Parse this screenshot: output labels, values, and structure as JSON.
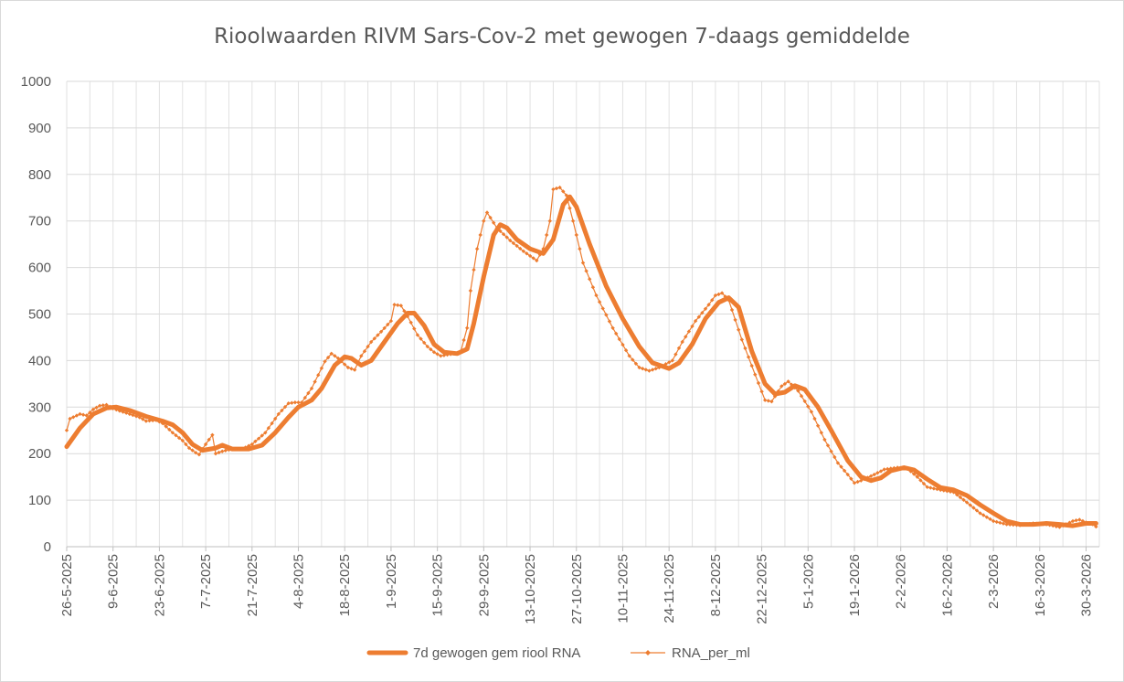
{
  "chart_data": {
    "type": "line",
    "title": "Rioolwaarden RIVM Sars-Cov-2 met gewogen 7-daags gemiddelde",
    "xlabel": "",
    "ylabel": "",
    "ylim": [
      0,
      1000
    ],
    "y_ticks": [
      "0",
      "100",
      "200",
      "300",
      "400",
      "500",
      "600",
      "700",
      "800",
      "900",
      "1000"
    ],
    "x_range": [
      "2025-05-26",
      "2026-04-02"
    ],
    "x_ticks": [
      "26-5-2025",
      "9-6-2025",
      "23-6-2025",
      "7-7-2025",
      "21-7-2025",
      "4-8-2025",
      "18-8-2025",
      "1-9-2025",
      "15-9-2025",
      "29-9-2025",
      "13-10-2025",
      "27-10-2025",
      "10-11-2025",
      "24-11-2025",
      "8-12-2025",
      "22-12-2025",
      "5-1-2026",
      "19-1-2026",
      "2-2-2026",
      "16-2-2026",
      "2-3-2026",
      "16-3-2026",
      "30-3-2026"
    ],
    "grid": true,
    "legend_position": "bottom",
    "series": [
      {
        "name": "7d gewogen gem riool RNA",
        "color": "#ed7d31",
        "style": "thick line",
        "points": [
          [
            "2025-05-26",
            215
          ],
          [
            "2025-05-30",
            255
          ],
          [
            "2025-06-03",
            285
          ],
          [
            "2025-06-07",
            298
          ],
          [
            "2025-06-10",
            300
          ],
          [
            "2025-06-14",
            293
          ],
          [
            "2025-06-19",
            280
          ],
          [
            "2025-06-24",
            270
          ],
          [
            "2025-06-27",
            262
          ],
          [
            "2025-06-30",
            245
          ],
          [
            "2025-07-03",
            220
          ],
          [
            "2025-07-06",
            207
          ],
          [
            "2025-07-10",
            212
          ],
          [
            "2025-07-12",
            218
          ],
          [
            "2025-07-15",
            210
          ],
          [
            "2025-07-20",
            210
          ],
          [
            "2025-07-24",
            218
          ],
          [
            "2025-07-28",
            245
          ],
          [
            "2025-08-01",
            278
          ],
          [
            "2025-08-04",
            300
          ],
          [
            "2025-08-08",
            315
          ],
          [
            "2025-08-11",
            340
          ],
          [
            "2025-08-15",
            390
          ],
          [
            "2025-08-18",
            408
          ],
          [
            "2025-08-20",
            405
          ],
          [
            "2025-08-23",
            390
          ],
          [
            "2025-08-26",
            400
          ],
          [
            "2025-08-30",
            440
          ],
          [
            "2025-09-03",
            480
          ],
          [
            "2025-09-06",
            502
          ],
          [
            "2025-09-08",
            502
          ],
          [
            "2025-09-11",
            475
          ],
          [
            "2025-09-14",
            435
          ],
          [
            "2025-09-17",
            418
          ],
          [
            "2025-09-21",
            415
          ],
          [
            "2025-09-24",
            425
          ],
          [
            "2025-09-26",
            480
          ],
          [
            "2025-09-29",
            580
          ],
          [
            "2025-10-02",
            670
          ],
          [
            "2025-10-04",
            692
          ],
          [
            "2025-10-06",
            685
          ],
          [
            "2025-10-09",
            660
          ],
          [
            "2025-10-13",
            640
          ],
          [
            "2025-10-17",
            630
          ],
          [
            "2025-10-20",
            660
          ],
          [
            "2025-10-23",
            735
          ],
          [
            "2025-10-25",
            752
          ],
          [
            "2025-10-27",
            730
          ],
          [
            "2025-10-31",
            650
          ],
          [
            "2025-11-05",
            560
          ],
          [
            "2025-11-10",
            490
          ],
          [
            "2025-11-15",
            430
          ],
          [
            "2025-11-19",
            395
          ],
          [
            "2025-11-24",
            383
          ],
          [
            "2025-11-27",
            395
          ],
          [
            "2025-12-01",
            435
          ],
          [
            "2025-12-05",
            490
          ],
          [
            "2025-12-09",
            525
          ],
          [
            "2025-12-12",
            535
          ],
          [
            "2025-12-15",
            515
          ],
          [
            "2025-12-19",
            420
          ],
          [
            "2025-12-23",
            350
          ],
          [
            "2025-12-26",
            328
          ],
          [
            "2025-12-29",
            332
          ],
          [
            "2026-01-01",
            346
          ],
          [
            "2026-01-04",
            338
          ],
          [
            "2026-01-08",
            300
          ],
          [
            "2026-01-12",
            250
          ],
          [
            "2026-01-17",
            185
          ],
          [
            "2026-01-21",
            150
          ],
          [
            "2026-01-24",
            142
          ],
          [
            "2026-01-27",
            148
          ],
          [
            "2026-01-30",
            163
          ],
          [
            "2026-02-03",
            170
          ],
          [
            "2026-02-06",
            165
          ],
          [
            "2026-02-10",
            145
          ],
          [
            "2026-02-14",
            127
          ],
          [
            "2026-02-18",
            122
          ],
          [
            "2026-02-22",
            110
          ],
          [
            "2026-02-26",
            90
          ],
          [
            "2026-03-02",
            72
          ],
          [
            "2026-03-06",
            55
          ],
          [
            "2026-03-10",
            48
          ],
          [
            "2026-03-14",
            48
          ],
          [
            "2026-03-18",
            50
          ],
          [
            "2026-03-22",
            48
          ],
          [
            "2026-03-26",
            45
          ],
          [
            "2026-03-30",
            50
          ],
          [
            "2026-04-02",
            50
          ]
        ]
      },
      {
        "name": "RNA_per_ml",
        "color": "#ed7d31",
        "style": "thin line with small diamond markers",
        "points": [
          [
            "2025-05-26",
            250
          ],
          [
            "2025-05-27",
            275
          ],
          [
            "2025-05-30",
            285
          ],
          [
            "2025-06-01",
            282
          ],
          [
            "2025-06-03",
            295
          ],
          [
            "2025-06-05",
            303
          ],
          [
            "2025-06-07",
            305
          ],
          [
            "2025-06-09",
            297
          ],
          [
            "2025-06-11",
            292
          ],
          [
            "2025-06-14",
            285
          ],
          [
            "2025-06-17",
            278
          ],
          [
            "2025-06-19",
            270
          ],
          [
            "2025-06-22",
            272
          ],
          [
            "2025-06-24",
            265
          ],
          [
            "2025-06-27",
            245
          ],
          [
            "2025-06-30",
            228
          ],
          [
            "2025-07-02",
            212
          ],
          [
            "2025-07-04",
            202
          ],
          [
            "2025-07-05",
            198
          ],
          [
            "2025-07-06",
            210
          ],
          [
            "2025-07-08",
            230
          ],
          [
            "2025-07-09",
            240
          ],
          [
            "2025-07-10",
            200
          ],
          [
            "2025-07-12",
            205
          ],
          [
            "2025-07-15",
            210
          ],
          [
            "2025-07-18",
            210
          ],
          [
            "2025-07-21",
            220
          ],
          [
            "2025-07-25",
            245
          ],
          [
            "2025-07-29",
            285
          ],
          [
            "2025-08-01",
            308
          ],
          [
            "2025-08-03",
            310
          ],
          [
            "2025-08-05",
            310
          ],
          [
            "2025-08-08",
            340
          ],
          [
            "2025-08-12",
            398
          ],
          [
            "2025-08-14",
            415
          ],
          [
            "2025-08-16",
            405
          ],
          [
            "2025-08-19",
            385
          ],
          [
            "2025-08-21",
            380
          ],
          [
            "2025-08-23",
            410
          ],
          [
            "2025-08-26",
            440
          ],
          [
            "2025-08-29",
            462
          ],
          [
            "2025-09-01",
            485
          ],
          [
            "2025-09-02",
            520
          ],
          [
            "2025-09-04",
            518
          ],
          [
            "2025-09-06",
            495
          ],
          [
            "2025-09-09",
            455
          ],
          [
            "2025-09-12",
            430
          ],
          [
            "2025-09-14",
            418
          ],
          [
            "2025-09-16",
            410
          ],
          [
            "2025-09-20",
            415
          ],
          [
            "2025-09-22",
            418
          ],
          [
            "2025-09-24",
            470
          ],
          [
            "2025-09-25",
            550
          ],
          [
            "2025-09-27",
            640
          ],
          [
            "2025-09-29",
            700
          ],
          [
            "2025-09-30",
            718
          ],
          [
            "2025-10-03",
            685
          ],
          [
            "2025-10-07",
            658
          ],
          [
            "2025-10-11",
            635
          ],
          [
            "2025-10-15",
            615
          ],
          [
            "2025-10-17",
            640
          ],
          [
            "2025-10-19",
            700
          ],
          [
            "2025-10-20",
            768
          ],
          [
            "2025-10-22",
            772
          ],
          [
            "2025-10-24",
            755
          ],
          [
            "2025-10-26",
            700
          ],
          [
            "2025-10-29",
            610
          ],
          [
            "2025-11-02",
            540
          ],
          [
            "2025-11-07",
            470
          ],
          [
            "2025-11-12",
            410
          ],
          [
            "2025-11-15",
            385
          ],
          [
            "2025-11-18",
            378
          ],
          [
            "2025-11-21",
            385
          ],
          [
            "2025-11-25",
            400
          ],
          [
            "2025-11-28",
            440
          ],
          [
            "2025-12-02",
            485
          ],
          [
            "2025-12-06",
            520
          ],
          [
            "2025-12-08",
            540
          ],
          [
            "2025-12-10",
            545
          ],
          [
            "2025-12-12",
            530
          ],
          [
            "2025-12-16",
            445
          ],
          [
            "2025-12-20",
            370
          ],
          [
            "2025-12-23",
            315
          ],
          [
            "2025-12-25",
            312
          ],
          [
            "2025-12-28",
            345
          ],
          [
            "2025-12-30",
            355
          ],
          [
            "2026-01-02",
            335
          ],
          [
            "2026-01-06",
            290
          ],
          [
            "2026-01-10",
            230
          ],
          [
            "2026-01-14",
            180
          ],
          [
            "2026-01-17",
            155
          ],
          [
            "2026-01-19",
            137
          ],
          [
            "2026-01-21",
            142
          ],
          [
            "2026-01-25",
            155
          ],
          [
            "2026-01-28",
            166
          ],
          [
            "2026-02-01",
            170
          ],
          [
            "2026-02-04",
            168
          ],
          [
            "2026-02-07",
            150
          ],
          [
            "2026-02-10",
            128
          ],
          [
            "2026-02-14",
            122
          ],
          [
            "2026-02-18",
            117
          ],
          [
            "2026-02-22",
            95
          ],
          [
            "2026-02-26",
            72
          ],
          [
            "2026-03-02",
            55
          ],
          [
            "2026-03-06",
            48
          ],
          [
            "2026-03-10",
            46
          ],
          [
            "2026-03-14",
            50
          ],
          [
            "2026-03-18",
            48
          ],
          [
            "2026-03-22",
            42
          ],
          [
            "2026-03-26",
            55
          ],
          [
            "2026-03-28",
            58
          ],
          [
            "2026-03-30",
            52
          ],
          [
            "2026-04-01",
            48
          ],
          [
            "2026-04-02",
            43
          ]
        ]
      }
    ]
  }
}
